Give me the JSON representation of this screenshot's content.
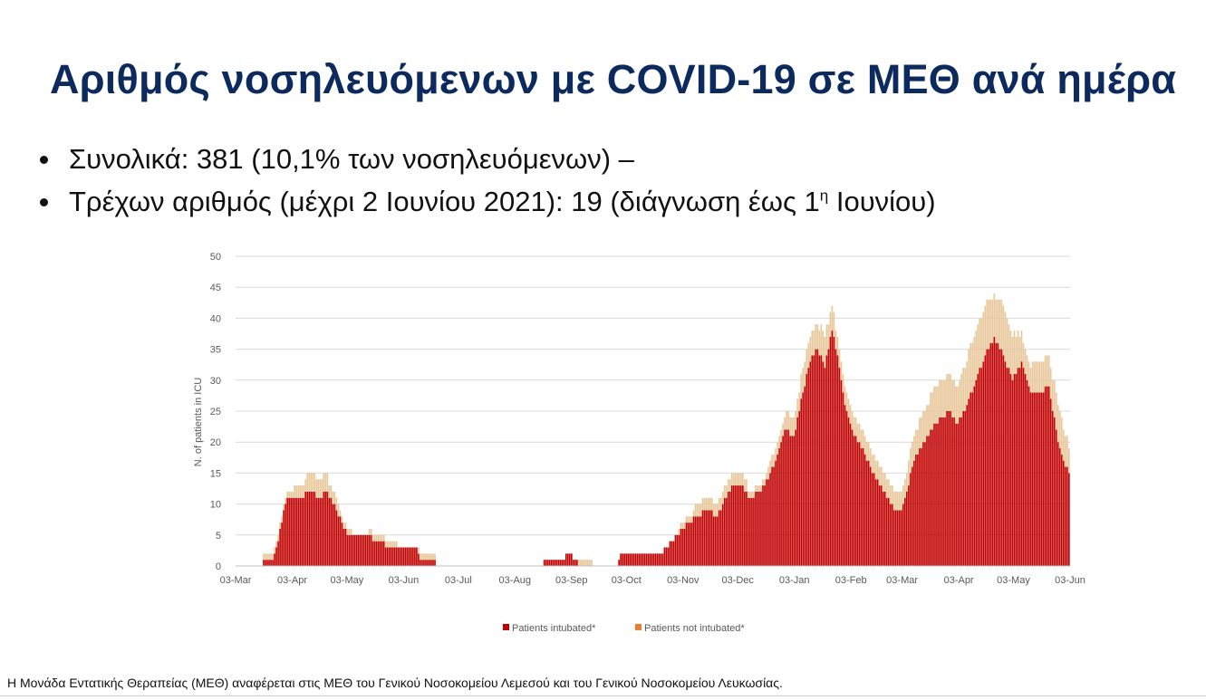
{
  "slide": {
    "title": "Αριθμός νοσηλευόμενων με COVID-19 σε ΜΕΘ ανά ημέρα",
    "bullet1": "Συνολικά: 381 (10,1% των νοσηλευόμενων) –",
    "bullet2_main": "Τρέχων αριθμός (μέχρι 2 Ιουνίου 2021): 19 (διάγνωση έως 1",
    "bullet2_sup": "η",
    "bullet2_tail": " Ιουνίου)",
    "footnote": "Η Μονάδα Εντατικής Θεραπείας (ΜΕΘ) αναφέρεται στις ΜΕΘ του Γενικού Νοσοκομείου Λεμεσού και του Γενικού Νοσοκομείου Λευκωσίας."
  },
  "colors": {
    "title": "#0d2a5e",
    "intubated": "#c00000",
    "not_intubated": "#e8c79a",
    "legend_not_intubated": "#ed7d31",
    "grid": "#d9d9d9"
  },
  "chart_data": {
    "type": "bar",
    "stacked": true,
    "ylabel": "N. of patients in ICU",
    "xlabel": "",
    "ylim": [
      0,
      50
    ],
    "yticks": [
      0,
      5,
      10,
      15,
      20,
      25,
      30,
      35,
      40,
      45,
      50
    ],
    "x_tick_labels": [
      "03-Mar",
      "03-Apr",
      "03-May",
      "03-Jun",
      "03-Jul",
      "03-Aug",
      "03-Sep",
      "03-Oct",
      "03-Nov",
      "03-Dec",
      "03-Jan",
      "03-Feb",
      "03-Mar",
      "03-Apr",
      "03-May",
      "03-Jun"
    ],
    "x_start": "2020-03-03",
    "x_end": "2021-06-03",
    "grid": true,
    "legend_position": "bottom",
    "series": [
      {
        "name": "Patients intubated*",
        "keypoints": [
          [
            "2020-03-03",
            0
          ],
          [
            "2020-03-17",
            0
          ],
          [
            "2020-03-18",
            1
          ],
          [
            "2020-03-23",
            1
          ],
          [
            "2020-03-26",
            4
          ],
          [
            "2020-03-30",
            10
          ],
          [
            "2020-04-01",
            11
          ],
          [
            "2020-04-08",
            11
          ],
          [
            "2020-04-12",
            12
          ],
          [
            "2020-04-18",
            11
          ],
          [
            "2020-04-22",
            12
          ],
          [
            "2020-04-27",
            9
          ],
          [
            "2020-05-03",
            5
          ],
          [
            "2020-05-13",
            5
          ],
          [
            "2020-05-20",
            4
          ],
          [
            "2020-05-27",
            3
          ],
          [
            "2020-06-03",
            3
          ],
          [
            "2020-06-10",
            3
          ],
          [
            "2020-06-12",
            1
          ],
          [
            "2020-06-20",
            1
          ],
          [
            "2020-06-21",
            0
          ],
          [
            "2020-08-18",
            0
          ],
          [
            "2020-08-19",
            1
          ],
          [
            "2020-08-30",
            1
          ],
          [
            "2020-08-31",
            2
          ],
          [
            "2020-09-03",
            2
          ],
          [
            "2020-09-04",
            1
          ],
          [
            "2020-09-06",
            1
          ],
          [
            "2020-09-07",
            0
          ],
          [
            "2020-09-28",
            0
          ],
          [
            "2020-09-29",
            1
          ],
          [
            "2020-10-01",
            2
          ],
          [
            "2020-10-08",
            2
          ],
          [
            "2020-10-15",
            2
          ],
          [
            "2020-10-22",
            2
          ],
          [
            "2020-10-28",
            4
          ],
          [
            "2020-11-03",
            6
          ],
          [
            "2020-11-10",
            8
          ],
          [
            "2020-11-17",
            9
          ],
          [
            "2020-11-22",
            8
          ],
          [
            "2020-11-25",
            10
          ],
          [
            "2020-12-01",
            13
          ],
          [
            "2020-12-05",
            13
          ],
          [
            "2020-12-10",
            11
          ],
          [
            "2020-12-15",
            12
          ],
          [
            "2020-12-20",
            14
          ],
          [
            "2020-12-25",
            18
          ],
          [
            "2020-12-29",
            22
          ],
          [
            "2021-01-03",
            21
          ],
          [
            "2021-01-08",
            28
          ],
          [
            "2021-01-12",
            33
          ],
          [
            "2021-01-16",
            35
          ],
          [
            "2021-01-20",
            32
          ],
          [
            "2021-01-24",
            38
          ],
          [
            "2021-01-27",
            34
          ],
          [
            "2021-01-31",
            26
          ],
          [
            "2021-02-05",
            21
          ],
          [
            "2021-02-10",
            19
          ],
          [
            "2021-02-15",
            15
          ],
          [
            "2021-02-19",
            13
          ],
          [
            "2021-02-23",
            11
          ],
          [
            "2021-02-28",
            9
          ],
          [
            "2021-03-03",
            9
          ],
          [
            "2021-03-06",
            12
          ],
          [
            "2021-03-10",
            17
          ],
          [
            "2021-03-15",
            20
          ],
          [
            "2021-03-22",
            23
          ],
          [
            "2021-03-29",
            25
          ],
          [
            "2021-04-03",
            23
          ],
          [
            "2021-04-08",
            26
          ],
          [
            "2021-04-13",
            30
          ],
          [
            "2021-04-18",
            34
          ],
          [
            "2021-04-23",
            37
          ],
          [
            "2021-04-28",
            34
          ],
          [
            "2021-05-03",
            30
          ],
          [
            "2021-05-08",
            33
          ],
          [
            "2021-05-13",
            28
          ],
          [
            "2021-05-18",
            28
          ],
          [
            "2021-05-23",
            29
          ],
          [
            "2021-05-28",
            20
          ],
          [
            "2021-06-01",
            16
          ],
          [
            "2021-06-03",
            15
          ]
        ]
      },
      {
        "name": "Patients not intubated*",
        "keypoints": [
          [
            "2020-03-03",
            0
          ],
          [
            "2020-03-17",
            0
          ],
          [
            "2020-03-18",
            1
          ],
          [
            "2020-03-25",
            1
          ],
          [
            "2020-03-31",
            1
          ],
          [
            "2020-04-08",
            2
          ],
          [
            "2020-04-14",
            3
          ],
          [
            "2020-04-20",
            3
          ],
          [
            "2020-04-25",
            2
          ],
          [
            "2020-05-01",
            1
          ],
          [
            "2020-05-10",
            0
          ],
          [
            "2020-05-20",
            1
          ],
          [
            "2020-05-27",
            1
          ],
          [
            "2020-06-03",
            0
          ],
          [
            "2020-06-10",
            0
          ],
          [
            "2020-06-12",
            1
          ],
          [
            "2020-06-20",
            1
          ],
          [
            "2020-06-21",
            0
          ],
          [
            "2020-08-31",
            0
          ],
          [
            "2020-09-06",
            0
          ],
          [
            "2020-09-07",
            1
          ],
          [
            "2020-09-14",
            1
          ],
          [
            "2020-09-15",
            0
          ],
          [
            "2020-10-28",
            0
          ],
          [
            "2020-11-05",
            1
          ],
          [
            "2020-11-15",
            2
          ],
          [
            "2020-11-25",
            2
          ],
          [
            "2020-12-01",
            2
          ],
          [
            "2020-12-15",
            1
          ],
          [
            "2020-12-25",
            2
          ],
          [
            "2021-01-03",
            3
          ],
          [
            "2021-01-10",
            4
          ],
          [
            "2021-01-16",
            4
          ],
          [
            "2021-01-20",
            5
          ],
          [
            "2021-01-27",
            3
          ],
          [
            "2021-02-03",
            3
          ],
          [
            "2021-02-10",
            3
          ],
          [
            "2021-02-17",
            3
          ],
          [
            "2021-02-23",
            3
          ],
          [
            "2021-03-03",
            3
          ],
          [
            "2021-03-10",
            4
          ],
          [
            "2021-03-15",
            5
          ],
          [
            "2021-03-22",
            6
          ],
          [
            "2021-03-29",
            6
          ],
          [
            "2021-04-03",
            6
          ],
          [
            "2021-04-10",
            8
          ],
          [
            "2021-04-18",
            8
          ],
          [
            "2021-04-23",
            7
          ],
          [
            "2021-04-28",
            8
          ],
          [
            "2021-05-03",
            7
          ],
          [
            "2021-05-10",
            4
          ],
          [
            "2021-05-18",
            5
          ],
          [
            "2021-05-23",
            5
          ],
          [
            "2021-05-28",
            6
          ],
          [
            "2021-06-01",
            5
          ],
          [
            "2021-06-03",
            4
          ]
        ]
      }
    ]
  }
}
